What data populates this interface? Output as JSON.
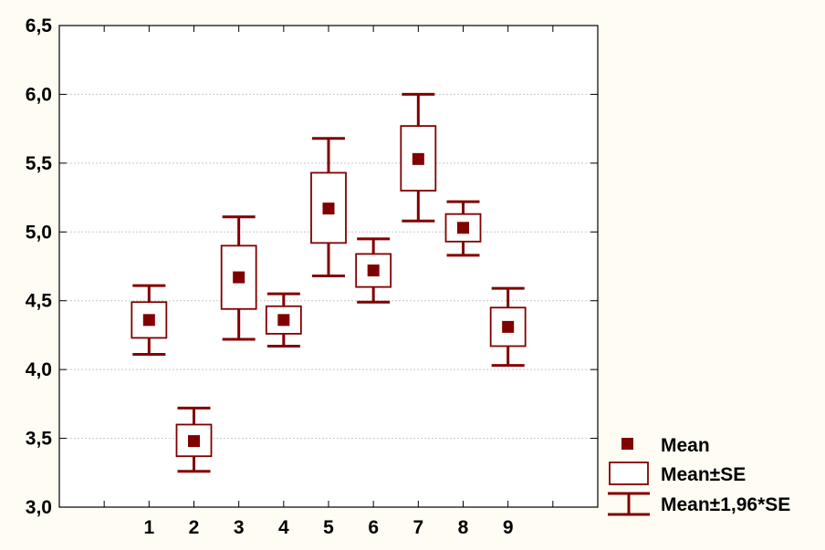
{
  "chart_data": {
    "type": "box",
    "categories": [
      "1",
      "2",
      "3",
      "4",
      "5",
      "6",
      "7",
      "8",
      "9"
    ],
    "series": [
      {
        "name": "Mean",
        "values": [
          4.36,
          3.48,
          4.67,
          4.36,
          5.17,
          4.72,
          5.53,
          5.03,
          4.31
        ]
      }
    ],
    "se_box": {
      "low": [
        4.23,
        3.37,
        4.44,
        4.26,
        4.92,
        4.6,
        5.3,
        4.93,
        4.17
      ],
      "high": [
        4.49,
        3.6,
        4.9,
        4.46,
        5.43,
        4.84,
        5.77,
        5.13,
        4.45
      ]
    },
    "ci_whiskers": {
      "low": [
        4.11,
        3.26,
        4.22,
        4.17,
        4.68,
        4.49,
        5.08,
        4.83,
        4.03
      ],
      "high": [
        4.61,
        3.72,
        5.11,
        4.55,
        5.68,
        4.95,
        6.0,
        5.22,
        4.59
      ]
    },
    "yticks": [
      "3,0",
      "3,5",
      "4,0",
      "4,5",
      "5,0",
      "5,5",
      "6,0",
      "6,5"
    ],
    "ylim": [
      3.0,
      6.5
    ],
    "xlim": [
      0,
      12
    ],
    "grid": "horizontal",
    "legend": {
      "position": "bottom-right",
      "items": [
        "Mean",
        "Mean±SE",
        "Mean±1,96*SE"
      ]
    },
    "colors": {
      "marker": "#800000",
      "box": "#800000",
      "box_fill": "#ffffff",
      "grid": "#c8c8c8",
      "background": "#fffdf3"
    }
  }
}
